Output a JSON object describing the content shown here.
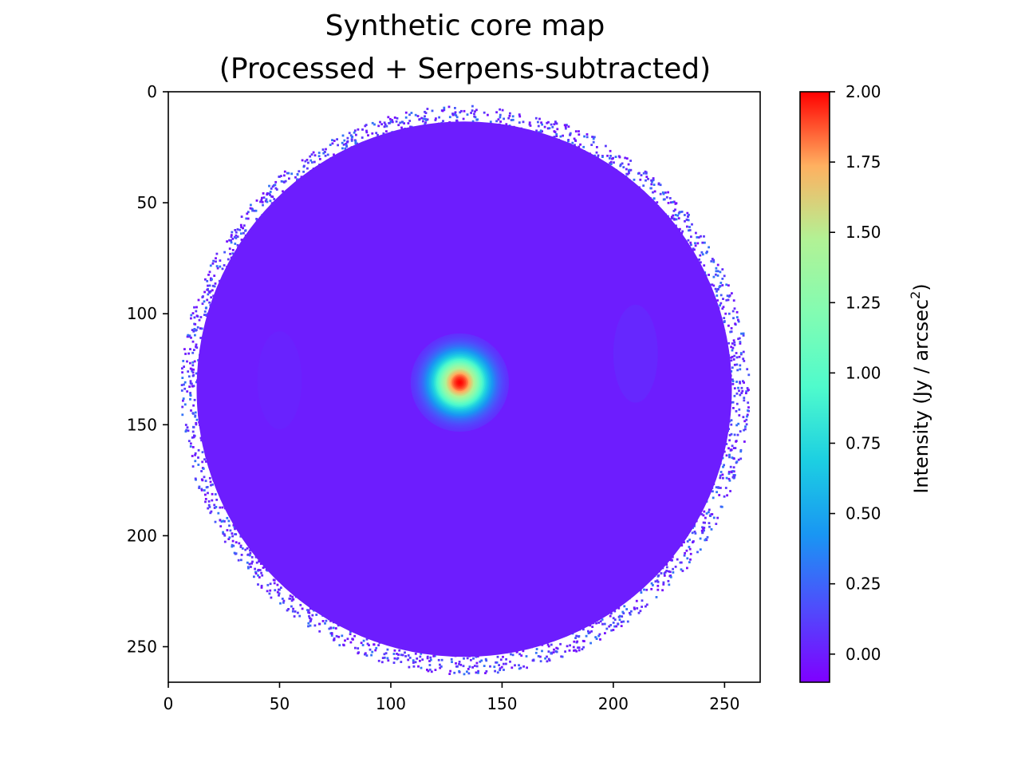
{
  "chart_data": {
    "type": "heatmap",
    "title_line1": "Synthetic core map",
    "title_line2": "(Processed + Serpens-subtracted)",
    "xlabel": "",
    "ylabel": "",
    "xlim": [
      0,
      266
    ],
    "ylim": [
      266,
      0
    ],
    "x_ticks": [
      0,
      50,
      100,
      150,
      200,
      250
    ],
    "y_ticks": [
      0,
      50,
      100,
      150,
      200,
      250
    ],
    "grid": false,
    "colormap": "rainbow",
    "colorbar": {
      "label": "Intensity (Jy / arcsec",
      "label_sup": "2",
      "label_end": ")",
      "range": [
        -0.1,
        2.0
      ],
      "ticks": [
        "0.00",
        "0.25",
        "0.50",
        "0.75",
        "1.00",
        "1.25",
        "1.50",
        "1.75",
        "2.00"
      ],
      "tick_values": [
        0.0,
        0.25,
        0.5,
        0.75,
        1.0,
        1.25,
        1.5,
        1.75,
        2.0
      ]
    },
    "map": {
      "background_level": 0.0,
      "disk_center": [
        133,
        134
      ],
      "disk_radius": 124,
      "core": {
        "center": [
          131,
          131
        ],
        "peak": 2.0,
        "fwhm": 20
      },
      "faint_features": [
        {
          "center": [
            210,
            118
          ],
          "peak": 0.06
        },
        {
          "center": [
            50,
            130
          ],
          "peak": 0.03
        }
      ],
      "edge_noise": true
    }
  }
}
